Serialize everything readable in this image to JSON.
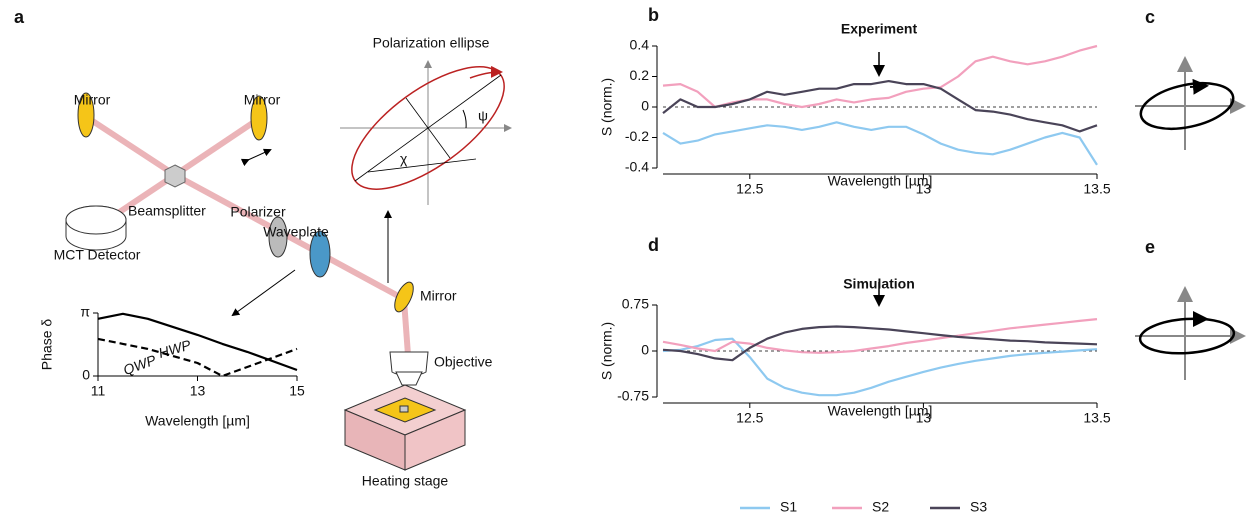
{
  "panels": [
    "a",
    "b",
    "c",
    "d",
    "e"
  ],
  "diagram": {
    "polarization_ellipse": "Polarization ellipse",
    "psi": "ψ",
    "chi": "χ",
    "mirror_left": "Mirror",
    "mirror_right": "Mirror",
    "mirror_low": "Mirror",
    "beamsplitter": "Beamsplitter",
    "detector": "MCT Detector",
    "polarizer": "Polarizer",
    "waveplate": "Waveplate",
    "objective": "Objective",
    "stage": "Heating stage"
  },
  "chart_data": [
    {
      "type": "line",
      "title": "Experiment",
      "y_label": "S (norm.)",
      "x_label": "Wavelength [µm]",
      "x": [
        12.25,
        12.3,
        12.35,
        12.4,
        12.45,
        12.5,
        12.55,
        12.6,
        12.65,
        12.7,
        12.75,
        12.8,
        12.85,
        12.9,
        12.95,
        13,
        13.05,
        13.1,
        13.15,
        13.2,
        13.25,
        13.3,
        13.35,
        13.4,
        13.45,
        13.5
      ],
      "series": [
        {
          "color": "#8ec9f0",
          "values": [
            -0.17,
            -0.24,
            -0.22,
            -0.18,
            -0.16,
            -0.14,
            -0.12,
            -0.13,
            -0.15,
            -0.13,
            -0.1,
            -0.13,
            -0.15,
            -0.13,
            -0.13,
            -0.18,
            -0.24,
            -0.28,
            -0.3,
            -0.31,
            -0.28,
            -0.24,
            -0.2,
            -0.17,
            -0.2,
            -0.38
          ]
        },
        {
          "color": "#f2a0bd",
          "values": [
            0.14,
            0.15,
            0.1,
            0,
            0.03,
            0.05,
            0.05,
            0.02,
            0,
            0.02,
            0.05,
            0.03,
            0.05,
            0.06,
            0.1,
            0.12,
            0.13,
            0.2,
            0.3,
            0.33,
            0.3,
            0.28,
            0.3,
            0.33,
            0.37,
            0.4
          ]
        },
        {
          "color": "#4a4458",
          "values": [
            -0.04,
            0.05,
            0,
            0,
            0.02,
            0.05,
            0.1,
            0.08,
            0.1,
            0.12,
            0.12,
            0.15,
            0.15,
            0.17,
            0.15,
            0.15,
            0.12,
            0.05,
            -0.02,
            -0.03,
            -0.05,
            -0.08,
            -0.1,
            -0.12,
            -0.16,
            -0.12
          ]
        }
      ],
      "xlim": [
        12.25,
        13.5
      ],
      "xticks": [
        12.5,
        13,
        13.5
      ],
      "ylim": [
        -0.4,
        0.4
      ],
      "yticks": [
        0.4,
        0.2,
        0,
        -0.2,
        -0.4
      ],
      "zero_line": true
    },
    {
      "type": "line",
      "title": "Simulation",
      "y_label": "S (norm.)",
      "x_label": "Wavelength [µm]",
      "x": [
        12.25,
        12.3,
        12.35,
        12.4,
        12.45,
        12.5,
        12.55,
        12.6,
        12.65,
        12.7,
        12.75,
        12.8,
        12.85,
        12.9,
        12.95,
        13,
        13.05,
        13.1,
        13.15,
        13.2,
        13.25,
        13.3,
        13.35,
        13.4,
        13.45,
        13.5
      ],
      "series": [
        {
          "name": "S1",
          "color": "#8ec9f0",
          "values": [
            0,
            0.02,
            0.08,
            0.18,
            0.2,
            -0.1,
            -0.45,
            -0.6,
            -0.68,
            -0.72,
            -0.72,
            -0.68,
            -0.6,
            -0.5,
            -0.42,
            -0.34,
            -0.27,
            -0.21,
            -0.16,
            -0.12,
            -0.08,
            -0.05,
            -0.03,
            -0.01,
            0.01,
            0.03
          ]
        },
        {
          "name": "S2",
          "color": "#f2a0bd",
          "values": [
            0.15,
            0.1,
            0.04,
            0,
            0.15,
            0.12,
            0.05,
            0.01,
            -0.02,
            -0.03,
            -0.02,
            0,
            0.04,
            0.08,
            0.13,
            0.17,
            0.21,
            0.25,
            0.29,
            0.33,
            0.37,
            0.4,
            0.43,
            0.46,
            0.49,
            0.52
          ]
        },
        {
          "name": "S3",
          "color": "#4a4458",
          "values": [
            0.02,
            0,
            -0.05,
            -0.12,
            -0.15,
            0.05,
            0.2,
            0.3,
            0.36,
            0.39,
            0.4,
            0.39,
            0.37,
            0.35,
            0.32,
            0.29,
            0.26,
            0.23,
            0.21,
            0.19,
            0.17,
            0.16,
            0.14,
            0.13,
            0.12,
            0.11
          ]
        }
      ],
      "xlim": [
        12.25,
        13.5
      ],
      "xticks": [
        12.5,
        13,
        13.5
      ],
      "ylim": [
        -0.75,
        0.75
      ],
      "yticks": [
        0.75,
        0,
        -0.75
      ],
      "zero_line": true
    },
    {
      "type": "line",
      "y_label": "Phase δ",
      "x_label": "Wavelength [µm]",
      "x": [
        11,
        11.5,
        12,
        13,
        13.5,
        14,
        15
      ],
      "series": [
        {
          "name": "HWP",
          "color": "#000000",
          "style": "solid",
          "values": [
            2.85,
            3.1,
            2.85,
            2.05,
            1.6,
            1.2,
            0.3
          ]
        },
        {
          "name": "QWP",
          "color": "#000000",
          "style": "dashed",
          "values": [
            1.85,
            1.6,
            1.35,
            0.65,
            0,
            0.45,
            1.35
          ]
        }
      ],
      "xlim": [
        11,
        15
      ],
      "xticks": [
        11,
        13,
        15
      ],
      "ylim": [
        0,
        3.14159
      ],
      "yticks": [
        {
          "value": 3.14159,
          "label": "π"
        },
        0
      ]
    }
  ]
}
